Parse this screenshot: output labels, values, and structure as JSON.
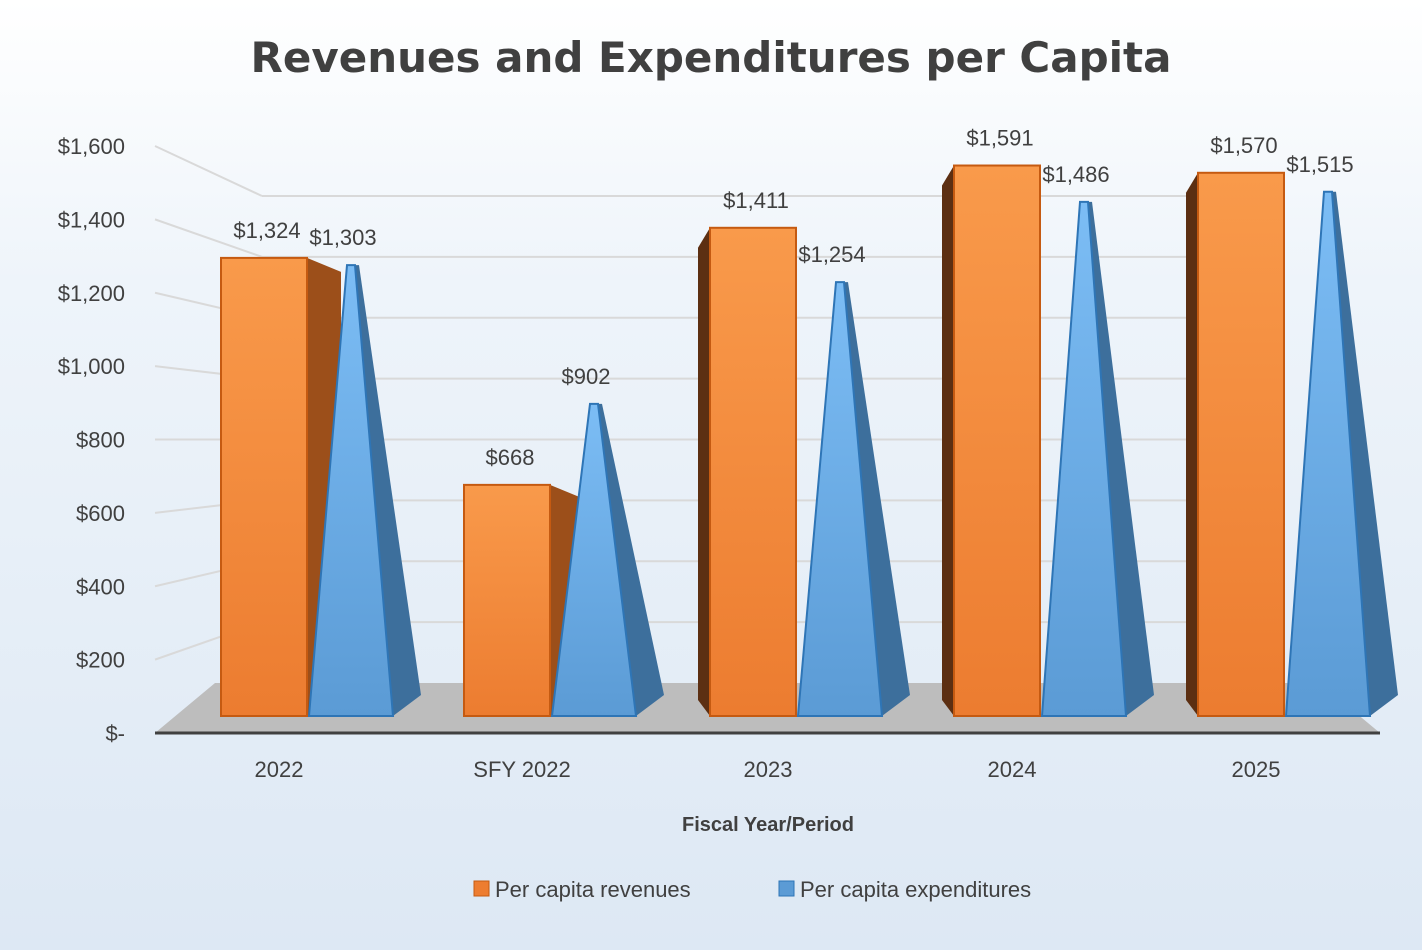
{
  "chart_data": {
    "type": "bar",
    "title": "Revenues and Expenditures per Capita",
    "xlabel": "Fiscal Year/Period",
    "ylabel": "",
    "categories": [
      "2022",
      "SFY 2022",
      "2023",
      "2024",
      "2025"
    ],
    "series": [
      {
        "name": "Per capita revenues",
        "values": [
          1324,
          668,
          1411,
          1591,
          1570
        ],
        "labels": [
          "$1,324",
          "$668",
          "$1,411",
          "$1,591",
          "$1,570"
        ],
        "color": "#ED7D31",
        "shape": "box"
      },
      {
        "name": "Per capita expenditures",
        "values": [
          1303,
          902,
          1254,
          1486,
          1515
        ],
        "labels": [
          "$1,303",
          "$902",
          "$1,254",
          "$1,486",
          "$1,515"
        ],
        "color": "#5B9BD5",
        "shape": "cone"
      }
    ],
    "ylim": [
      0,
      1600
    ],
    "yticks": [
      0,
      200,
      400,
      600,
      800,
      1000,
      1200,
      1400,
      1600
    ],
    "ytick_labels": [
      "$-",
      "$200",
      "$400",
      "$600",
      "$800",
      "$1,000",
      "$1,200",
      "$1,400",
      "$1,600"
    ],
    "grid": true,
    "legend": "bottom",
    "style": "3d"
  }
}
